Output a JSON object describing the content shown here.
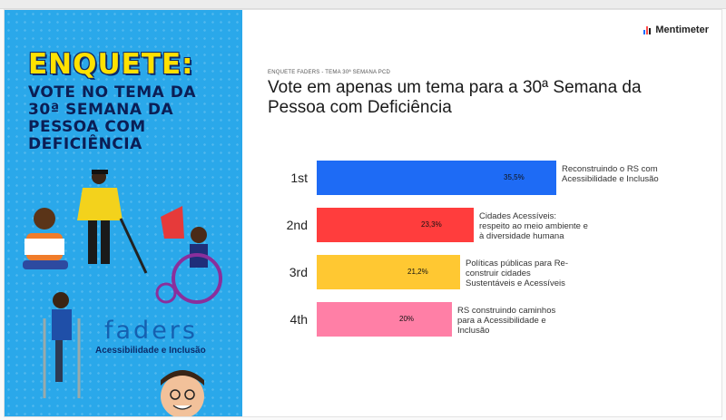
{
  "poster": {
    "title": "ENQUETE:",
    "subtitle_lines": [
      "VOTE NO TEMA DA",
      "30ª SEMANA DA",
      "PESSOA COM",
      "DEFICIÊNCIA"
    ],
    "logo_text": "faders",
    "logo_tagline": "Acessibilidade e Inclusão"
  },
  "brand": {
    "name": "Mentimeter",
    "icon": "mentimeter-bars-icon"
  },
  "slide": {
    "supertitle": "ENQUETE FADERS - TEMA 30ª SEMANA PCD",
    "question": "Vote em apenas um tema para a 30ª Semana da Pessoa com Deficiência"
  },
  "chart_data": {
    "type": "bar",
    "orientation": "horizontal",
    "title": "",
    "xlabel": "",
    "ylabel": "",
    "xlim": [
      0,
      35.5
    ],
    "categories": [
      "1st",
      "2nd",
      "3rd",
      "4th"
    ],
    "values": [
      35.5,
      23.3,
      21.2,
      20
    ],
    "value_labels": [
      "35,5%",
      "23,3%",
      "21,2%",
      "20%"
    ],
    "option_labels": [
      "Reconstruindo o RS com Acessibilidade e Inclusão",
      "Cidades Acessíveis: respeito ao meio ambiente e à diversidade humana",
      "Políticas públicas para Re-construir cidades Sustentáveis e Acessíveis",
      "RS construindo caminhos para a Acessibilidade e Inclusão"
    ],
    "colors": [
      "#1e6bf5",
      "#ff3d3d",
      "#ffc832",
      "#ff7fa6"
    ],
    "grid": false,
    "legend": "none"
  }
}
